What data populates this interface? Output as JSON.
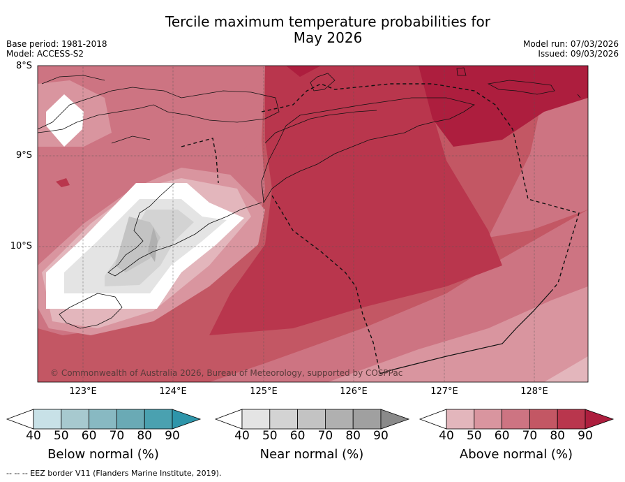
{
  "title_line1": "Tercile maximum temperature probabilities for",
  "title_line2": "May 2026",
  "base_period": "Base period: 1981-2018",
  "model": "Model: ACCESS-S2",
  "model_run": "Model run: 07/03/2026",
  "issued": "Issued: 09/03/2026",
  "copyright": "© Commonwealth of Australia 2026, Bureau of Meteorology, supported by COSPPac",
  "lat_labels": [
    "8°S",
    "9°S",
    "10°S"
  ],
  "lon_labels": [
    "123°E",
    "124°E",
    "125°E",
    "126°E",
    "127°E",
    "128°E"
  ],
  "colorbars": [
    {
      "title": "Below normal (%)",
      "ticks": [
        "40",
        "50",
        "60",
        "70",
        "80",
        "90"
      ],
      "colors": [
        "#c8e1e7",
        "#a7c9cf",
        "#88b9c2",
        "#6aaab5",
        "#4aa1b0",
        "#2e95aa"
      ]
    },
    {
      "title": "Near normal (%)",
      "ticks": [
        "40",
        "50",
        "60",
        "70",
        "80",
        "90"
      ],
      "colors": [
        "#e4e4e4",
        "#d3d3d3",
        "#c3c3c3",
        "#b0b0b0",
        "#a0a0a0",
        "#8a8a8a"
      ]
    },
    {
      "title": "Above normal (%)",
      "ticks": [
        "40",
        "50",
        "60",
        "70",
        "80",
        "90"
      ],
      "colors": [
        "#e3b6bc",
        "#d9959f",
        "#cd7482",
        "#c35764",
        "#b9364d",
        "#ad1e3e"
      ]
    }
  ],
  "footnote": "--  --  -- EEZ border V11 (Flanders Marine Institute, 2019)."
}
